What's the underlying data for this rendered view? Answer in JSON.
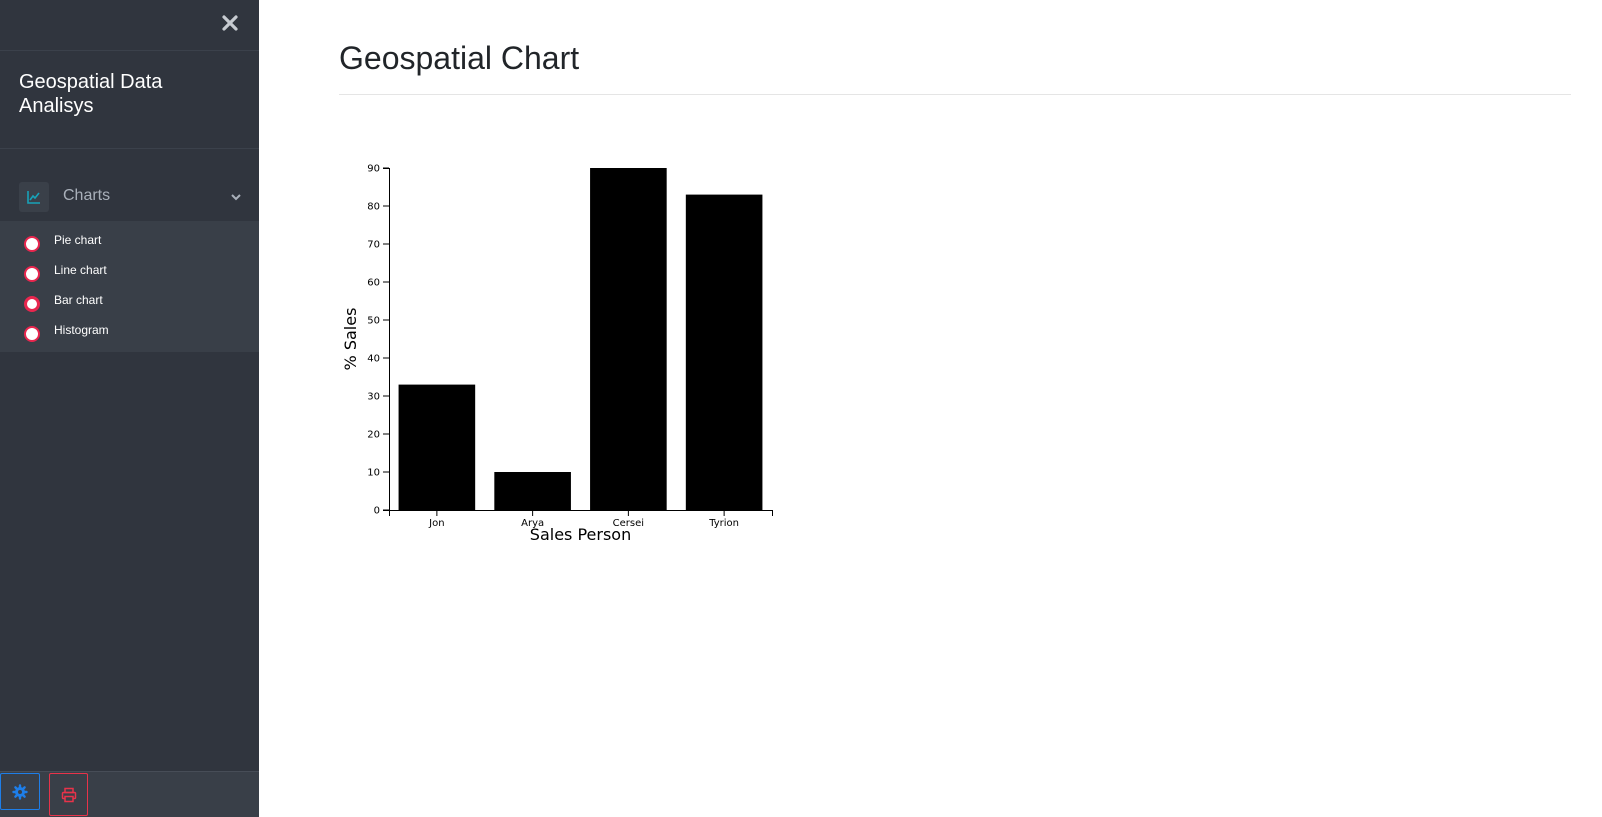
{
  "sidebar": {
    "brand": "Geospatial Data Analisys",
    "menu": {
      "label": "Charts",
      "items": [
        {
          "label": "Pie chart",
          "active": false
        },
        {
          "label": "Line chart",
          "active": false
        },
        {
          "label": "Bar chart",
          "active": true
        },
        {
          "label": "Histogram",
          "active": false
        }
      ]
    },
    "colors": {
      "background": "#30353e",
      "accent": "#e8264e",
      "icon": "#17a2b8"
    }
  },
  "main": {
    "title": "Geospatial Chart"
  },
  "chart_data": {
    "type": "bar",
    "categories": [
      "Jon",
      "Arya",
      "Cersei",
      "Tyrion"
    ],
    "values": [
      33,
      10,
      90,
      83
    ],
    "xlabel": "Sales Person",
    "ylabel": "% Sales",
    "ylim": [
      0,
      90
    ],
    "yticks": [
      0,
      10,
      20,
      30,
      40,
      50,
      60,
      70,
      80,
      90
    ],
    "bar_color": "#000000",
    "grid": false
  }
}
